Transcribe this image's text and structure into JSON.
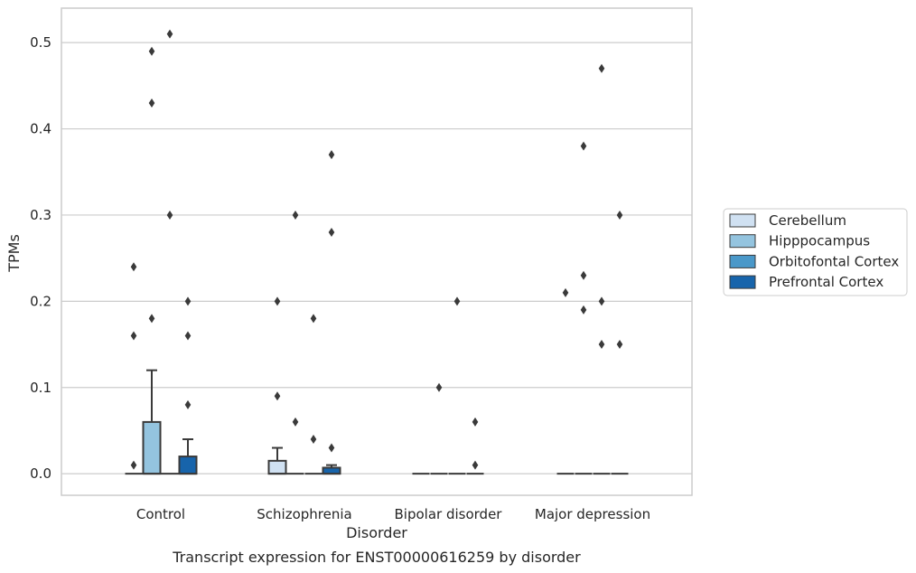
{
  "caption": "Transcript expression for ENST00000616259 by disorder",
  "colors": {
    "Cerebellum": "#d0e1f2",
    "Hipppocampus": "#94c4df",
    "Orbitofontal Cortex": "#4a98c9",
    "Prefrontal Cortex": "#1764ab",
    "outline": "#3a3a3a",
    "grid": "#cccccc",
    "frame": "#cccccc"
  },
  "chart_data": {
    "type": "box",
    "xlabel": "Disorder",
    "ylabel": "TPMs",
    "ylim": [
      -0.025,
      0.54
    ],
    "yticks": [
      0.0,
      0.1,
      0.2,
      0.3,
      0.4,
      0.5
    ],
    "ytick_labels": [
      "0.0",
      "0.1",
      "0.2",
      "0.3",
      "0.4",
      "0.5"
    ],
    "grid": "horizontal",
    "legend_position": "right",
    "categories": [
      "Control",
      "Schizophrenia",
      "Bipolar disorder",
      "Major depression"
    ],
    "series": [
      {
        "name": "Cerebellum",
        "boxes": [
          {
            "q1": 0,
            "median": 0,
            "q3": 0,
            "whisker_low": 0,
            "whisker_high": 0,
            "outliers": [
              0.24,
              0.16,
              0.01
            ]
          },
          {
            "q1": 0,
            "median": 0,
            "q3": 0.015,
            "whisker_low": 0,
            "whisker_high": 0.03,
            "outliers": [
              0.2,
              0.09
            ]
          },
          {
            "q1": 0,
            "median": 0,
            "q3": 0,
            "whisker_low": 0,
            "whisker_high": 0,
            "outliers": []
          },
          {
            "q1": 0,
            "median": 0,
            "q3": 0,
            "whisker_low": 0,
            "whisker_high": 0,
            "outliers": [
              0.21
            ]
          }
        ]
      },
      {
        "name": "Hipppocampus",
        "boxes": [
          {
            "q1": 0,
            "median": 0,
            "q3": 0.06,
            "whisker_low": 0,
            "whisker_high": 0.12,
            "outliers": [
              0.49,
              0.43,
              0.18
            ]
          },
          {
            "q1": 0,
            "median": 0,
            "q3": 0,
            "whisker_low": 0,
            "whisker_high": 0,
            "outliers": [
              0.3,
              0.06
            ]
          },
          {
            "q1": 0,
            "median": 0,
            "q3": 0,
            "whisker_low": 0,
            "whisker_high": 0,
            "outliers": [
              0.1
            ]
          },
          {
            "q1": 0,
            "median": 0,
            "q3": 0,
            "whisker_low": 0,
            "whisker_high": 0,
            "outliers": [
              0.38,
              0.23,
              0.19
            ]
          }
        ]
      },
      {
        "name": "Orbitofontal Cortex",
        "boxes": [
          {
            "q1": 0,
            "median": 0,
            "q3": 0,
            "whisker_low": 0,
            "whisker_high": 0,
            "outliers": [
              0.51,
              0.3
            ]
          },
          {
            "q1": 0,
            "median": 0,
            "q3": 0,
            "whisker_low": 0,
            "whisker_high": 0,
            "outliers": [
              0.18,
              0.04
            ]
          },
          {
            "q1": 0,
            "median": 0,
            "q3": 0,
            "whisker_low": 0,
            "whisker_high": 0,
            "outliers": [
              0.2
            ]
          },
          {
            "q1": 0,
            "median": 0,
            "q3": 0,
            "whisker_low": 0,
            "whisker_high": 0,
            "outliers": [
              0.47,
              0.2,
              0.15
            ]
          }
        ]
      },
      {
        "name": "Prefrontal Cortex",
        "boxes": [
          {
            "q1": 0,
            "median": 0,
            "q3": 0.02,
            "whisker_low": 0,
            "whisker_high": 0.04,
            "outliers": [
              0.2,
              0.16,
              0.08
            ]
          },
          {
            "q1": 0,
            "median": 0,
            "q3": 0.007,
            "whisker_low": 0,
            "whisker_high": 0.01,
            "outliers": [
              0.37,
              0.28,
              0.03
            ]
          },
          {
            "q1": 0,
            "median": 0,
            "q3": 0,
            "whisker_low": 0,
            "whisker_high": 0,
            "outliers": [
              0.06,
              0.01
            ]
          },
          {
            "q1": 0,
            "median": 0,
            "q3": 0,
            "whisker_low": 0,
            "whisker_high": 0,
            "outliers": [
              0.3,
              0.15
            ]
          }
        ]
      }
    ]
  }
}
